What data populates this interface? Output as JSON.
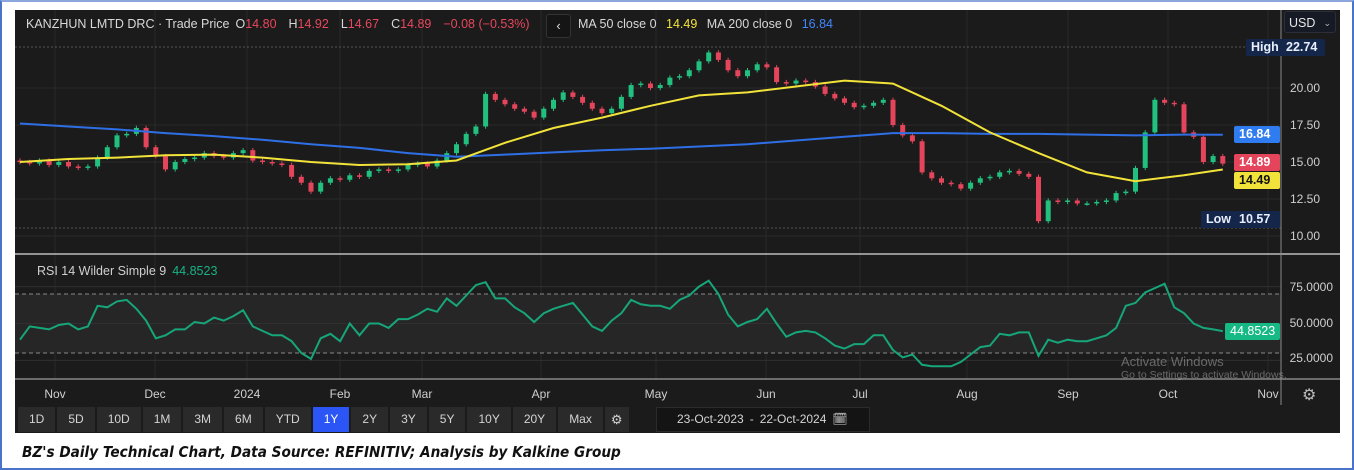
{
  "header": {
    "instrument": "KANZHUN LMTD DRC · Trade Price",
    "open_label": "O",
    "open": "14.80",
    "high_label": "H",
    "high": "14.92",
    "low_label": "L",
    "low": "14.67",
    "close_label": "C",
    "close": "14.89",
    "change": "−0.08 (−0.53%)",
    "collapse_icon": "chevron-left-icon",
    "ma50_label": "MA 50 close 0",
    "ma50_value": "14.49",
    "ma200_label": "MA 200 close 0",
    "ma200_value": "16.84"
  },
  "currency": {
    "value": "USD",
    "icon": "chevron-down-icon"
  },
  "price_axis": {
    "ticks": [
      "20.00",
      "17.50",
      "15.00",
      "12.50",
      "10.00"
    ],
    "high_label": "High",
    "high_value": "22.74",
    "low_label": "Low",
    "low_value": "10.57",
    "ma200_tag": "16.84",
    "last_tag": "14.89",
    "ma50_tag": "14.49"
  },
  "rsi": {
    "label": "RSI 14 Wilder Simple 9",
    "value": "44.8523",
    "ticks": [
      "75.0000",
      "50.0000",
      "25.0000"
    ],
    "tag": "44.8523"
  },
  "time_axis": [
    "Nov",
    "Dec",
    "2024",
    "Feb",
    "Mar",
    "Apr",
    "May",
    "Jun",
    "Jul",
    "Aug",
    "Sep",
    "Oct",
    "Nov"
  ],
  "watermark": {
    "line1": "Activate Windows",
    "line2": "Go to Settings to activate Windows."
  },
  "toolbar": {
    "ranges": [
      "1D",
      "5D",
      "10D",
      "1M",
      "3M",
      "6M",
      "YTD",
      "1Y",
      "2Y",
      "3Y",
      "5Y",
      "10Y",
      "20Y",
      "Max"
    ],
    "active": "1Y",
    "settings_icon": "gear-icon",
    "date_from": "23-Oct-2023",
    "date_sep": "-",
    "date_to": "22-Oct-2024",
    "calendar_icon": "calendar-icon"
  },
  "caption": "BZ's Daily Technical Chart, Data Source: REFINITIV; Analysis by Kalkine Group",
  "colors": {
    "up": "#22c07f",
    "down": "#e5455b",
    "ma50": "#f2e33a",
    "ma200": "#2f6fe6",
    "rsi": "#16a679",
    "active": "#2c55f5"
  },
  "chart_data": [
    {
      "type": "candlestick",
      "title": "KANZHUN LMTD DRC · Trade Price",
      "period": "23-Oct-2023 to 22-Oct-2024, daily (sampled every 2 sessions)",
      "ylim": [
        9.5,
        23.5
      ],
      "high": 22.74,
      "low": 10.57,
      "last": 14.89,
      "close": [
        15.0,
        14.9,
        15.1,
        14.8,
        15.0,
        14.7,
        14.6,
        14.7,
        15.3,
        16.0,
        16.8,
        16.9,
        17.3,
        16.0,
        15.4,
        14.5,
        15.0,
        15.2,
        15.3,
        15.6,
        15.4,
        15.3,
        15.6,
        15.8,
        15.1,
        15.0,
        14.9,
        14.8,
        14.0,
        13.6,
        13.0,
        13.6,
        13.9,
        13.8,
        14.1,
        14.0,
        14.4,
        14.5,
        14.4,
        14.5,
        14.8,
        14.9,
        14.7,
        15.1,
        15.6,
        16.2,
        16.9,
        17.4,
        19.6,
        19.2,
        18.9,
        18.6,
        18.4,
        18.0,
        18.6,
        19.2,
        19.7,
        19.4,
        19.0,
        18.6,
        18.3,
        18.6,
        19.4,
        20.2,
        20.3,
        20.0,
        20.2,
        20.7,
        20.8,
        21.2,
        21.8,
        22.4,
        21.9,
        21.2,
        20.8,
        21.2,
        21.6,
        21.4,
        20.4,
        20.3,
        20.5,
        20.4,
        20.1,
        19.6,
        19.3,
        19.0,
        18.7,
        18.8,
        19.0,
        19.2,
        17.5,
        16.8,
        16.4,
        14.3,
        13.9,
        13.6,
        13.5,
        13.2,
        13.6,
        13.9,
        14.0,
        14.3,
        14.4,
        14.2,
        14.0,
        11.0,
        12.4,
        12.3,
        12.4,
        12.2,
        12.2,
        12.3,
        12.4,
        12.9,
        13.0,
        14.6,
        17.0,
        19.2,
        19.0,
        18.9,
        17.0,
        16.7,
        15.0,
        15.4,
        14.89
      ],
      "ma50_every5": [
        15.0,
        15.2,
        15.3,
        15.45,
        15.5,
        15.3,
        15.0,
        14.8,
        14.85,
        15.1,
        16.3,
        17.3,
        18.0,
        18.8,
        19.5,
        19.7,
        20.1,
        20.5,
        20.3,
        18.8,
        17.0,
        15.6,
        14.3,
        13.7,
        14.1,
        14.49
      ],
      "ma200_every5": [
        17.6,
        17.4,
        17.2,
        16.95,
        16.75,
        16.5,
        16.2,
        15.95,
        15.6,
        15.35,
        15.5,
        15.65,
        15.8,
        15.9,
        16.05,
        16.2,
        16.45,
        16.7,
        16.95,
        16.95,
        16.9,
        16.9,
        16.85,
        16.8,
        16.85,
        16.84
      ]
    },
    {
      "type": "line",
      "title": "RSI 14 Wilder Simple 9",
      "ylim": [
        15,
        90
      ],
      "bands": [
        30,
        70
      ],
      "values": [
        39,
        48,
        47,
        46,
        49,
        50,
        46,
        48,
        62,
        61,
        65,
        66,
        60,
        52,
        40,
        42,
        46,
        46,
        51,
        50,
        54,
        52,
        55,
        59,
        48,
        45,
        42,
        42,
        38,
        30,
        26,
        40,
        43,
        38,
        50,
        42,
        50,
        50,
        47,
        53,
        53,
        56,
        60,
        58,
        67,
        62,
        69,
        76,
        78,
        67,
        67,
        61,
        57,
        51,
        57,
        60,
        62,
        64,
        56,
        48,
        45,
        52,
        57,
        66,
        63,
        62,
        62,
        60,
        66,
        69,
        75,
        79,
        70,
        56,
        48,
        51,
        53,
        60,
        50,
        41,
        44,
        45,
        44,
        40,
        35,
        33,
        36,
        36,
        42,
        42,
        32,
        27,
        29,
        22,
        21,
        21,
        21,
        24,
        29,
        34,
        35,
        43,
        42,
        44,
        44,
        28,
        39,
        37,
        39,
        38,
        38,
        40,
        42,
        47,
        62,
        64,
        71,
        74,
        77,
        61,
        57,
        50,
        47,
        46,
        44.8523
      ]
    }
  ]
}
